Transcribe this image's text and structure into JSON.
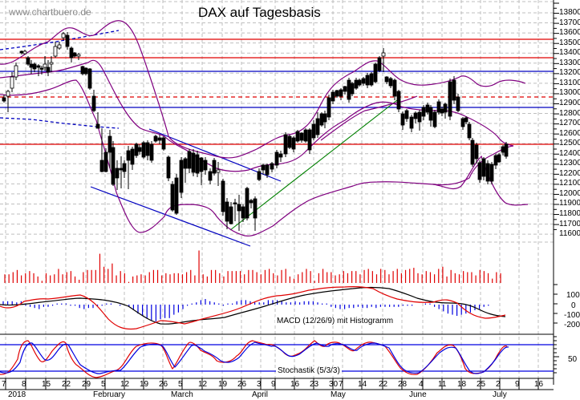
{
  "header": {
    "title": "DAX auf Tagesbasis",
    "watermark": "www.chartbuero.de"
  },
  "indicators": {
    "macd_label": "MACD (12/26/9) mit Histogramm",
    "stoch_label": "Stochastik (5/3/3)"
  },
  "axes": {
    "price_ticks": [
      "13800",
      "13700",
      "13600",
      "13500",
      "13400",
      "13300",
      "13200",
      "13100",
      "13000",
      "12900",
      "12800",
      "12700",
      "12600",
      "12500",
      "12400",
      "12300",
      "12200",
      "12100",
      "12000",
      "11900",
      "11800",
      "11700",
      "11600"
    ],
    "macd_ticks": [
      "100",
      "0",
      "-100",
      "-200"
    ],
    "stoch_ticks": [
      "50"
    ],
    "x_day_ticks": [
      "7",
      "8",
      "15",
      "22",
      "29",
      "5",
      "12",
      "19",
      "26",
      "5",
      "12",
      "19",
      "26",
      "3",
      "9",
      "16",
      "23",
      "30",
      "7",
      "14",
      "22",
      "28",
      "4",
      "11",
      "18",
      "25",
      "2",
      "9",
      "16"
    ],
    "x_month_labels": [
      "2018",
      "February",
      "March",
      "April",
      "May",
      "June",
      "July"
    ]
  },
  "colors": {
    "candle": "#000000",
    "resistance": "#e00000",
    "support": "#0000c0",
    "bollinger": "#800080",
    "trend_up": "#008000",
    "volume": "#e00000",
    "macd_line": "#000000",
    "macd_signal": "#e00000",
    "macd_hist": "#0000e0",
    "stoch_k": "#e00000",
    "stoch_d": "#0000e0",
    "grid": "#bfbfbf"
  },
  "chart_data": {
    "type": "candlestick",
    "title": "DAX auf Tagesbasis",
    "xlabel": "",
    "ylabel": "",
    "ylim": [
      11550,
      13900
    ],
    "x_range": [
      "2017-12-27",
      "2018-07-06"
    ],
    "grid": true,
    "horizontal_levels": [
      {
        "value": 13520,
        "color": "red",
        "style": "solid"
      },
      {
        "value": 13330,
        "color": "red",
        "style": "solid"
      },
      {
        "value": 13200,
        "color": "blue",
        "style": "solid"
      },
      {
        "value": 12950,
        "color": "red",
        "style": "dashed"
      },
      {
        "value": 12850,
        "color": "blue",
        "style": "solid"
      },
      {
        "value": 12500,
        "color": "red",
        "style": "solid"
      }
    ],
    "trendlines": [
      {
        "name": "Downtrend channel lower",
        "color": "blue",
        "from": [
          "2018-02-02",
          12230
        ],
        "to": [
          "2018-04-04",
          11600
        ]
      },
      {
        "name": "Downtrend resistance",
        "color": "blue",
        "from": [
          "2018-02-21",
          12600
        ],
        "to": [
          "2018-04-06",
          12170
        ]
      },
      {
        "name": "Uptrend support",
        "color": "green",
        "from": [
          "2018-03-26",
          11710
        ],
        "to": [
          "2018-05-16",
          12920
        ]
      }
    ],
    "approx_closes": [
      {
        "x": "2018-01-02",
        "y": 12870
      },
      {
        "x": "2018-01-05",
        "y": 13320
      },
      {
        "x": "2018-01-12",
        "y": 13240
      },
      {
        "x": "2018-01-19",
        "y": 13350
      },
      {
        "x": "2018-01-23",
        "y": 13560
      },
      {
        "x": "2018-01-26",
        "y": 13340
      },
      {
        "x": "2018-02-02",
        "y": 12790
      },
      {
        "x": "2018-02-06",
        "y": 12390
      },
      {
        "x": "2018-02-09",
        "y": 12110
      },
      {
        "x": "2018-02-16",
        "y": 12450
      },
      {
        "x": "2018-02-23",
        "y": 12480
      },
      {
        "x": "2018-03-02",
        "y": 11910
      },
      {
        "x": "2018-03-09",
        "y": 12350
      },
      {
        "x": "2018-03-16",
        "y": 12390
      },
      {
        "x": "2018-03-23",
        "y": 11890
      },
      {
        "x": "2018-03-26",
        "y": 11790
      },
      {
        "x": "2018-04-04",
        "y": 12000
      },
      {
        "x": "2018-04-13",
        "y": 12440
      },
      {
        "x": "2018-04-20",
        "y": 12540
      },
      {
        "x": "2018-04-27",
        "y": 12580
      },
      {
        "x": "2018-05-04",
        "y": 12820
      },
      {
        "x": "2018-05-11",
        "y": 12990
      },
      {
        "x": "2018-05-16",
        "y": 13050
      },
      {
        "x": "2018-05-22",
        "y": 13170
      },
      {
        "x": "2018-05-25",
        "y": 12940
      },
      {
        "x": "2018-05-29",
        "y": 12670
      },
      {
        "x": "2018-06-01",
        "y": 12720
      },
      {
        "x": "2018-06-08",
        "y": 12770
      },
      {
        "x": "2018-06-13",
        "y": 12880
      },
      {
        "x": "2018-06-15",
        "y": 13110
      },
      {
        "x": "2018-06-19",
        "y": 12830
      },
      {
        "x": "2018-06-22",
        "y": 12580
      },
      {
        "x": "2018-06-25",
        "y": 12270
      },
      {
        "x": "2018-06-28",
        "y": 12170
      },
      {
        "x": "2018-07-02",
        "y": 12240
      },
      {
        "x": "2018-07-05",
        "y": 12470
      }
    ],
    "series": [
      {
        "name": "Bollinger upper",
        "color": "purple"
      },
      {
        "name": "Bollinger middle",
        "color": "purple"
      },
      {
        "name": "Bollinger lower",
        "color": "purple"
      },
      {
        "name": "Volume",
        "color": "red",
        "panel": "volume"
      },
      {
        "name": "MACD (12/26/9)",
        "panel": "macd",
        "ylim": [
          -250,
          150
        ]
      },
      {
        "name": "Stochastik (5/3/3)",
        "panel": "stoch",
        "ylim": [
          0,
          100
        ],
        "levels": [
          80,
          20
        ]
      }
    ]
  }
}
